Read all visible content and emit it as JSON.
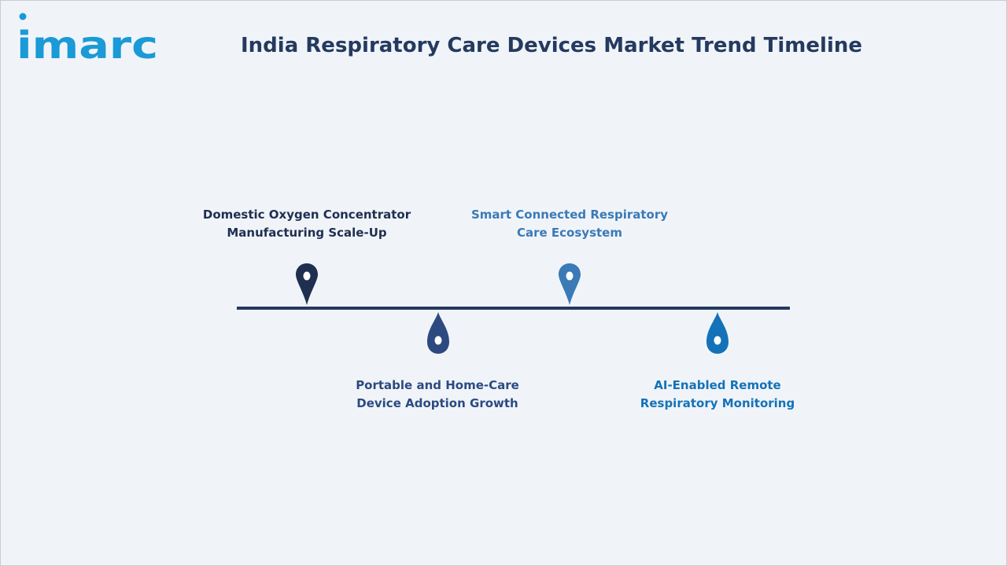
{
  "brand": {
    "logo_text": "imarc",
    "logo_color": "#1a9ad6"
  },
  "header": {
    "title": "India Respiratory Care Devices Market Trend Timeline"
  },
  "timeline": {
    "line_color": "#243a5e",
    "milestones": [
      {
        "line1": "Domestic Oxygen Concentrator",
        "line2": "Manufacturing Scale-Up",
        "marker": "map-pin-icon",
        "color": "#1f2f4f"
      },
      {
        "line1": "Portable and Home-Care",
        "line2": "Device Adoption Growth",
        "marker": "droplet-icon",
        "color": "#2c4a80"
      },
      {
        "line1": "Smart Connected Respiratory",
        "line2": "Care Ecosystem",
        "marker": "map-pin-icon",
        "color": "#3a7ab6"
      },
      {
        "line1": "AI-Enabled Remote",
        "line2": "Respiratory Monitoring",
        "marker": "droplet-icon",
        "color": "#1472b8"
      }
    ]
  }
}
